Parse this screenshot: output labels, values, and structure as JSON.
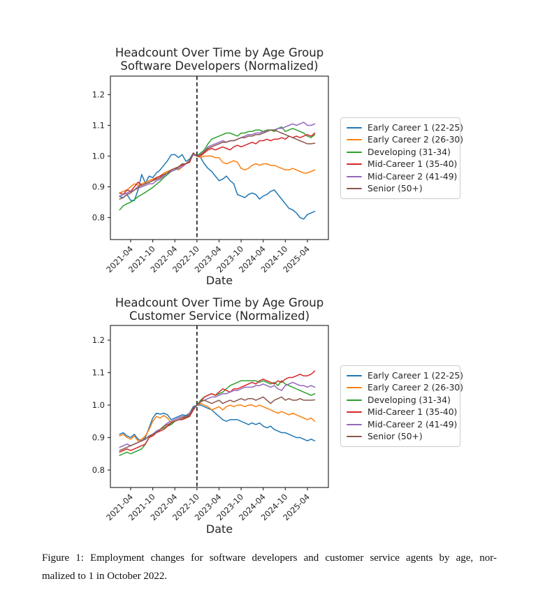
{
  "caption": {
    "line1": "Figure 1: Employment changes for software developers and customer service agents by age, nor-",
    "line2": "malized to 1 in October 2022."
  },
  "chart_data": [
    {
      "type": "line",
      "title_line1": "Headcount Over Time by Age Group",
      "title_line2": "Software Developers (Normalized)",
      "xlabel": "Date",
      "x_start": "2021-01",
      "x_end": "2025-06",
      "x_tick_labels": [
        "2021-04",
        "2021-10",
        "2022-04",
        "2022-10",
        "2023-04",
        "2023-10",
        "2024-04",
        "2024-10",
        "2025-04"
      ],
      "y_tick_labels": [
        "1.2",
        "1.1",
        "1.0",
        "0.9",
        "0.8"
      ],
      "ylim": [
        0.73,
        1.26
      ],
      "vline_month": "2022-10",
      "grid": false,
      "legend_position": "outside-center-right",
      "axis_color": "#2e2e2e",
      "vline_color": "#111111",
      "series": [
        {
          "name": "Early Career 1 (22-25)",
          "color": "#1f77b4",
          "values": [
            0.868,
            0.865,
            0.875,
            0.856,
            0.855,
            0.89,
            0.94,
            0.912,
            0.935,
            0.93,
            0.945,
            0.955,
            0.97,
            0.985,
            1.004,
            1.005,
            0.995,
            1.005,
            0.983,
            0.99,
            1.01,
            1.0,
            0.995,
            0.975,
            0.96,
            0.95,
            0.935,
            0.92,
            0.925,
            0.935,
            0.92,
            0.91,
            0.875,
            0.87,
            0.865,
            0.875,
            0.88,
            0.875,
            0.86,
            0.87,
            0.875,
            0.885,
            0.89,
            0.875,
            0.86,
            0.845,
            0.83,
            0.825,
            0.815,
            0.8,
            0.795,
            0.81,
            0.815,
            0.82
          ]
        },
        {
          "name": "Early Career 2 (26-30)",
          "color": "#ff7f0e",
          "values": [
            0.88,
            0.885,
            0.89,
            0.9,
            0.91,
            0.905,
            0.91,
            0.915,
            0.92,
            0.925,
            0.93,
            0.935,
            0.945,
            0.95,
            0.955,
            0.96,
            0.955,
            0.965,
            0.975,
            0.98,
            1.005,
            1.0,
            0.995,
            1.0,
            1.0,
            1.0,
            0.995,
            0.995,
            0.98,
            0.975,
            0.98,
            0.985,
            0.98,
            0.96,
            0.955,
            0.96,
            0.97,
            0.975,
            0.97,
            0.975,
            0.975,
            0.97,
            0.97,
            0.965,
            0.96,
            0.955,
            0.955,
            0.96,
            0.955,
            0.95,
            0.945,
            0.945,
            0.95,
            0.955
          ]
        },
        {
          "name": "Developing (31-34)",
          "color": "#2ca02c",
          "values": [
            0.825,
            0.838,
            0.845,
            0.85,
            0.858,
            0.868,
            0.875,
            0.882,
            0.89,
            0.898,
            0.908,
            0.918,
            0.93,
            0.94,
            0.95,
            0.955,
            0.965,
            0.97,
            0.975,
            0.985,
            1.005,
            1.0,
            1.01,
            1.02,
            1.04,
            1.055,
            1.06,
            1.065,
            1.07,
            1.075,
            1.075,
            1.07,
            1.065,
            1.075,
            1.075,
            1.08,
            1.08,
            1.085,
            1.085,
            1.08,
            1.085,
            1.085,
            1.08,
            1.09,
            1.095,
            1.08,
            1.085,
            1.09,
            1.085,
            1.08,
            1.075,
            1.065,
            1.06,
            1.07
          ]
        },
        {
          "name": "Mid-Career 1 (35-40)",
          "color": "#d62728",
          "values": [
            0.88,
            0.875,
            0.89,
            0.885,
            0.9,
            0.915,
            0.905,
            0.91,
            0.915,
            0.92,
            0.93,
            0.935,
            0.94,
            0.945,
            0.955,
            0.96,
            0.965,
            0.97,
            0.975,
            0.98,
            1.01,
            1.0,
            1.0,
            1.01,
            1.02,
            1.025,
            1.02,
            1.025,
            1.03,
            1.025,
            1.02,
            1.03,
            1.035,
            1.03,
            1.035,
            1.04,
            1.045,
            1.04,
            1.05,
            1.05,
            1.055,
            1.05,
            1.055,
            1.055,
            1.06,
            1.055,
            1.065,
            1.06,
            1.065,
            1.06,
            1.065,
            1.07,
            1.065,
            1.075
          ]
        },
        {
          "name": "Mid-Career 2 (41-49)",
          "color": "#9467bd",
          "values": [
            0.87,
            0.875,
            0.88,
            0.885,
            0.89,
            0.895,
            0.9,
            0.905,
            0.91,
            0.91,
            0.92,
            0.925,
            0.935,
            0.945,
            0.95,
            0.955,
            0.96,
            0.965,
            0.975,
            0.985,
            1.005,
            1.0,
            1.005,
            1.015,
            1.03,
            1.035,
            1.04,
            1.045,
            1.05,
            1.045,
            1.05,
            1.05,
            1.055,
            1.06,
            1.065,
            1.07,
            1.07,
            1.075,
            1.075,
            1.08,
            1.08,
            1.085,
            1.085,
            1.09,
            1.09,
            1.095,
            1.1,
            1.105,
            1.1,
            1.105,
            1.11,
            1.1,
            1.1,
            1.105
          ]
        },
        {
          "name": "Senior (50+)",
          "color": "#8c564b",
          "values": [
            0.86,
            0.865,
            0.875,
            0.88,
            0.89,
            0.9,
            0.905,
            0.91,
            0.915,
            0.92,
            0.925,
            0.93,
            0.94,
            0.945,
            0.955,
            0.96,
            0.965,
            0.975,
            0.975,
            0.985,
            1.01,
            1.0,
            1.005,
            1.015,
            1.025,
            1.03,
            1.035,
            1.04,
            1.045,
            1.045,
            1.05,
            1.05,
            1.055,
            1.06,
            1.06,
            1.065,
            1.065,
            1.07,
            1.07,
            1.075,
            1.08,
            1.085,
            1.085,
            1.08,
            1.075,
            1.07,
            1.065,
            1.06,
            1.055,
            1.05,
            1.045,
            1.04,
            1.04,
            1.042
          ]
        }
      ]
    },
    {
      "type": "line",
      "title_line1": "Headcount Over Time by Age Group",
      "title_line2": "Customer Service (Normalized)",
      "xlabel": "Date",
      "x_start": "2021-01",
      "x_end": "2025-06",
      "x_tick_labels": [
        "2021-04",
        "2021-10",
        "2022-04",
        "2022-10",
        "2023-04",
        "2023-10",
        "2024-04",
        "2024-10",
        "2025-04"
      ],
      "y_tick_labels": [
        "1.2",
        "1.1",
        "1.0",
        "0.9",
        "0.8"
      ],
      "ylim": [
        0.75,
        1.25
      ],
      "vline_month": "2022-10",
      "grid": false,
      "legend_position": "outside-center-right",
      "axis_color": "#2e2e2e",
      "vline_color": "#111111",
      "series": [
        {
          "name": "Early Career 1 (22-25)",
          "color": "#1f77b4",
          "values": [
            0.91,
            0.915,
            0.905,
            0.9,
            0.91,
            0.895,
            0.89,
            0.9,
            0.93,
            0.96,
            0.975,
            0.972,
            0.975,
            0.97,
            0.955,
            0.96,
            0.965,
            0.97,
            0.968,
            0.975,
            0.995,
            1.0,
            1.0,
            0.995,
            0.99,
            0.985,
            0.975,
            0.965,
            0.955,
            0.95,
            0.955,
            0.955,
            0.955,
            0.95,
            0.945,
            0.94,
            0.945,
            0.94,
            0.945,
            0.935,
            0.93,
            0.935,
            0.925,
            0.92,
            0.915,
            0.915,
            0.91,
            0.905,
            0.9,
            0.9,
            0.895,
            0.89,
            0.895,
            0.89
          ]
        },
        {
          "name": "Early Career 2 (26-30)",
          "color": "#ff7f0e",
          "values": [
            0.905,
            0.91,
            0.9,
            0.895,
            0.905,
            0.89,
            0.895,
            0.905,
            0.925,
            0.95,
            0.965,
            0.96,
            0.968,
            0.96,
            0.945,
            0.955,
            0.96,
            0.965,
            0.96,
            0.97,
            0.99,
            1.0,
            1.005,
            1.0,
            0.995,
            0.985,
            0.99,
            0.995,
            0.985,
            0.995,
            1.0,
            0.995,
            1.0,
            1.0,
            0.995,
            1.0,
            1.0,
            0.995,
            1.0,
            0.995,
            0.99,
            0.985,
            0.98,
            0.975,
            0.98,
            0.975,
            0.97,
            0.975,
            0.97,
            0.965,
            0.96,
            0.955,
            0.96,
            0.95
          ]
        },
        {
          "name": "Developing (31-34)",
          "color": "#2ca02c",
          "values": [
            0.845,
            0.85,
            0.855,
            0.85,
            0.855,
            0.86,
            0.865,
            0.88,
            0.9,
            0.91,
            0.92,
            0.925,
            0.93,
            0.935,
            0.94,
            0.95,
            0.955,
            0.96,
            0.96,
            0.97,
            0.985,
            1.0,
            1.015,
            1.025,
            1.03,
            1.035,
            1.03,
            1.035,
            1.04,
            1.05,
            1.06,
            1.065,
            1.07,
            1.075,
            1.075,
            1.075,
            1.075,
            1.075,
            1.07,
            1.075,
            1.07,
            1.065,
            1.07,
            1.06,
            1.075,
            1.065,
            1.06,
            1.055,
            1.05,
            1.045,
            1.04,
            1.035,
            1.03,
            1.035
          ]
        },
        {
          "name": "Mid-Career 1 (35-40)",
          "color": "#d62728",
          "values": [
            0.855,
            0.86,
            0.865,
            0.86,
            0.865,
            0.87,
            0.875,
            0.88,
            0.9,
            0.905,
            0.915,
            0.92,
            0.925,
            0.935,
            0.945,
            0.95,
            0.955,
            0.955,
            0.96,
            0.965,
            0.985,
            1.0,
            1.01,
            1.025,
            1.03,
            1.035,
            1.03,
            1.04,
            1.05,
            1.045,
            1.04,
            1.05,
            1.05,
            1.055,
            1.06,
            1.065,
            1.07,
            1.065,
            1.075,
            1.08,
            1.075,
            1.07,
            1.065,
            1.075,
            1.07,
            1.08,
            1.085,
            1.085,
            1.09,
            1.095,
            1.09,
            1.09,
            1.095,
            1.105
          ]
        },
        {
          "name": "Mid-Career 2 (41-49)",
          "color": "#9467bd",
          "values": [
            0.87,
            0.875,
            0.88,
            0.875,
            0.88,
            0.885,
            0.89,
            0.895,
            0.905,
            0.91,
            0.92,
            0.925,
            0.935,
            0.945,
            0.95,
            0.955,
            0.96,
            0.965,
            0.965,
            0.975,
            0.99,
            1.0,
            1.01,
            1.015,
            1.02,
            1.025,
            1.025,
            1.03,
            1.035,
            1.035,
            1.04,
            1.045,
            1.045,
            1.05,
            1.055,
            1.055,
            1.055,
            1.06,
            1.06,
            1.065,
            1.06,
            1.055,
            1.06,
            1.05,
            1.045,
            1.06,
            1.065,
            1.07,
            1.065,
            1.06,
            1.06,
            1.055,
            1.06,
            1.055
          ]
        },
        {
          "name": "Senior (50+)",
          "color": "#8c564b",
          "values": [
            0.86,
            0.865,
            0.87,
            0.875,
            0.88,
            0.885,
            0.89,
            0.895,
            0.905,
            0.91,
            0.915,
            0.925,
            0.935,
            0.94,
            0.945,
            0.95,
            0.955,
            0.96,
            0.965,
            0.97,
            0.99,
            1.0,
            1.01,
            1.015,
            1.01,
            1.005,
            1.01,
            1.015,
            1.005,
            1.01,
            1.015,
            1.01,
            1.015,
            1.02,
            1.015,
            1.02,
            1.02,
            1.015,
            1.02,
            1.025,
            1.015,
            1.005,
            1.015,
            1.02,
            1.025,
            1.015,
            1.02,
            1.015,
            1.015,
            1.02,
            1.015,
            1.015,
            1.015,
            1.016
          ]
        }
      ]
    }
  ]
}
